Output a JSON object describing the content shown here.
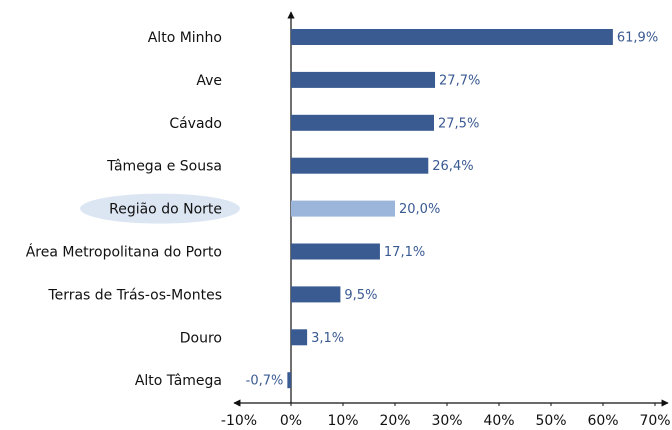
{
  "chart_data": {
    "type": "bar",
    "orientation": "horizontal",
    "categories": [
      "Alto Minho",
      "Ave",
      "Cávado",
      "Tâmega e Sousa",
      "Região do Norte",
      "Área Metropolitana do Porto",
      "Terras de Trás-os-Montes",
      "Douro",
      "Alto Tâmega"
    ],
    "values": [
      61.9,
      27.7,
      27.5,
      26.4,
      20.0,
      17.1,
      9.5,
      3.1,
      -0.7
    ],
    "value_labels": [
      "61,9%",
      "27,7%",
      "27,5%",
      "26,4%",
      "20,0%",
      "17,1%",
      "9,5%",
      "3,1%",
      "-0,7%"
    ],
    "colors": [
      "#3a5a92",
      "#3a5a92",
      "#3a5a92",
      "#3a5a92",
      "#9cb5db",
      "#3a5a92",
      "#3a5a92",
      "#3a5a92",
      "#3a5a92"
    ],
    "xlim": [
      -10,
      70
    ],
    "xticks": [
      {
        "value": -10,
        "label": "-10%"
      },
      {
        "value": 0,
        "label": "0%"
      },
      {
        "value": 10,
        "label": "10%"
      },
      {
        "value": 20,
        "label": "20%"
      },
      {
        "value": 30,
        "label": "30%"
      },
      {
        "value": 40,
        "label": "40%"
      },
      {
        "value": 50,
        "label": "50%"
      },
      {
        "value": 60,
        "label": "60%"
      },
      {
        "value": 70,
        "label": "70%"
      }
    ],
    "grid": false
  }
}
